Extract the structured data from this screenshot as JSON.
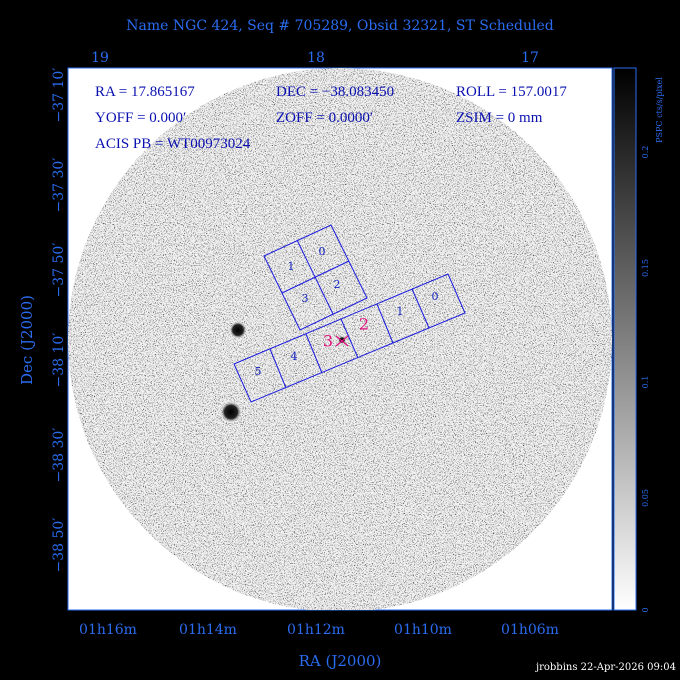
{
  "header": {
    "title": "Name NGC 424, Seq # 705289, Obsid 32321, ST Scheduled"
  },
  "info": {
    "ra": "RA = 17.865167",
    "dec": "DEC = −38.083450",
    "roll": "ROLL = 157.0017",
    "yoff": "YOFF =    0.000′",
    "zoff": "ZOFF =  0.0000′",
    "zsim": "ZSIM = 0 mm",
    "acis_pb": "ACIS PB = WT00973024"
  },
  "top_axis": [
    "19",
    "18",
    "17"
  ],
  "x_axis": {
    "title": "RA (J2000)",
    "ticks": [
      "01h16m",
      "01h14m",
      "01h12m",
      "01h10m",
      "01h06m"
    ]
  },
  "y_axis": {
    "title": "Dec (J2000)",
    "ticks": [
      "−37 10′",
      "−37 30′",
      "−37 50′",
      "−38 10′",
      "−38 30′",
      "−38 50′"
    ]
  },
  "i_array": [
    "1",
    "0",
    "3",
    "2"
  ],
  "s_array": [
    "5",
    "4",
    "1",
    "0"
  ],
  "aimpoint_labels": [
    "3",
    "2"
  ],
  "colorbar": {
    "label": "PSPC cts/s/pixel",
    "ticks": [
      0,
      0.05,
      0.1,
      0.15,
      0.2
    ]
  },
  "footer": "jrobbins 22-Apr-2026 09:04"
}
